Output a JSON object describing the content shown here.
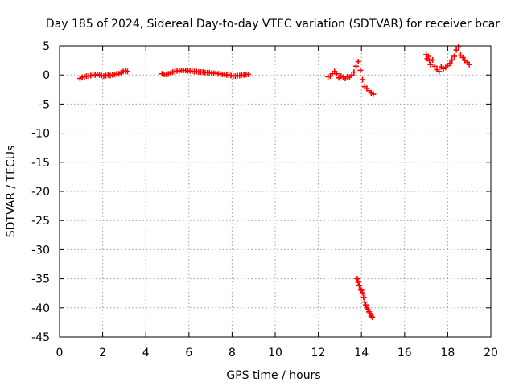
{
  "chart_data": {
    "type": "scatter",
    "title": "Day 185 of 2024, Sidereal Day-to-day VTEC variation (SDTVAR) for receiver bcar",
    "xlabel": "GPS time / hours",
    "ylabel": "SDTVAR / TECUs",
    "xlim": [
      0,
      20
    ],
    "ylim": [
      -45,
      5
    ],
    "xticks": [
      0,
      2,
      4,
      6,
      8,
      10,
      12,
      14,
      16,
      18,
      20
    ],
    "yticks": [
      5,
      0,
      -5,
      -10,
      -15,
      -20,
      -25,
      -30,
      -35,
      -40,
      -45
    ],
    "grid": true,
    "marker": "+",
    "series": [
      {
        "name": "SDTVAR",
        "color": "#ff0000",
        "x": [
          0.95,
          1.05,
          1.15,
          1.25,
          1.35,
          1.45,
          1.55,
          1.65,
          1.75,
          1.85,
          1.95,
          2.05,
          2.15,
          2.25,
          2.35,
          2.45,
          2.55,
          2.65,
          2.75,
          2.85,
          2.95,
          3.05,
          3.15,
          4.75,
          4.85,
          4.95,
          5.05,
          5.15,
          5.25,
          5.35,
          5.45,
          5.55,
          5.65,
          5.75,
          5.85,
          5.95,
          6.05,
          6.15,
          6.25,
          6.35,
          6.45,
          6.55,
          6.65,
          6.75,
          6.85,
          6.95,
          7.05,
          7.15,
          7.25,
          7.35,
          7.45,
          7.55,
          7.65,
          7.75,
          7.85,
          7.95,
          8.05,
          8.15,
          8.25,
          8.35,
          8.45,
          8.55,
          8.65,
          8.75,
          12.45,
          12.55,
          12.65,
          12.75,
          12.85,
          12.95,
          13.05,
          13.15,
          13.25,
          13.35,
          13.45,
          13.55,
          13.65,
          13.75,
          13.85,
          13.95,
          14.05,
          14.15,
          14.25,
          14.35,
          14.45,
          14.55,
          13.8,
          13.85,
          13.9,
          13.95,
          14.0,
          14.05,
          14.1,
          14.15,
          14.2,
          14.25,
          14.3,
          14.35,
          14.4,
          14.45,
          14.5,
          17.0,
          17.05,
          17.1,
          17.15,
          17.2,
          17.3,
          17.4,
          17.5,
          17.6,
          17.7,
          17.8,
          17.9,
          18.0,
          18.1,
          18.2,
          18.3,
          18.4,
          18.5,
          18.6,
          18.7,
          18.8,
          18.9,
          19.0
        ],
        "y": [
          -0.6,
          -0.4,
          -0.3,
          -0.2,
          -0.2,
          -0.1,
          0.0,
          0.0,
          0.1,
          0.0,
          -0.1,
          -0.2,
          -0.1,
          0.0,
          -0.1,
          0.0,
          0.1,
          0.2,
          0.2,
          0.4,
          0.6,
          0.7,
          0.6,
          0.2,
          0.1,
          0.1,
          0.2,
          0.3,
          0.5,
          0.6,
          0.7,
          0.7,
          0.8,
          0.8,
          0.8,
          0.7,
          0.7,
          0.6,
          0.6,
          0.6,
          0.5,
          0.5,
          0.5,
          0.4,
          0.4,
          0.4,
          0.3,
          0.3,
          0.3,
          0.2,
          0.2,
          0.1,
          0.1,
          0.0,
          0.0,
          -0.1,
          -0.2,
          -0.2,
          -0.1,
          -0.1,
          0.0,
          0.0,
          0.1,
          0.1,
          -0.3,
          -0.2,
          0.2,
          0.6,
          0.2,
          -0.5,
          -0.2,
          -0.4,
          -0.6,
          -0.3,
          -0.4,
          0.0,
          0.5,
          1.5,
          2.3,
          0.8,
          -0.8,
          -2.0,
          -2.3,
          -2.7,
          -3.1,
          -3.3,
          -35.0,
          -35.6,
          -36.2,
          -36.8,
          -37.0,
          -37.4,
          -38.2,
          -39.0,
          -39.5,
          -40.0,
          -40.3,
          -40.7,
          -41.0,
          -41.4,
          -41.6,
          3.5,
          2.8,
          3.2,
          2.5,
          1.8,
          2.6,
          1.5,
          0.9,
          0.6,
          1.4,
          1.1,
          1.3,
          1.6,
          2.0,
          2.6,
          3.2,
          4.3,
          4.8,
          3.4,
          3.0,
          2.5,
          2.2,
          1.8
        ]
      }
    ]
  }
}
